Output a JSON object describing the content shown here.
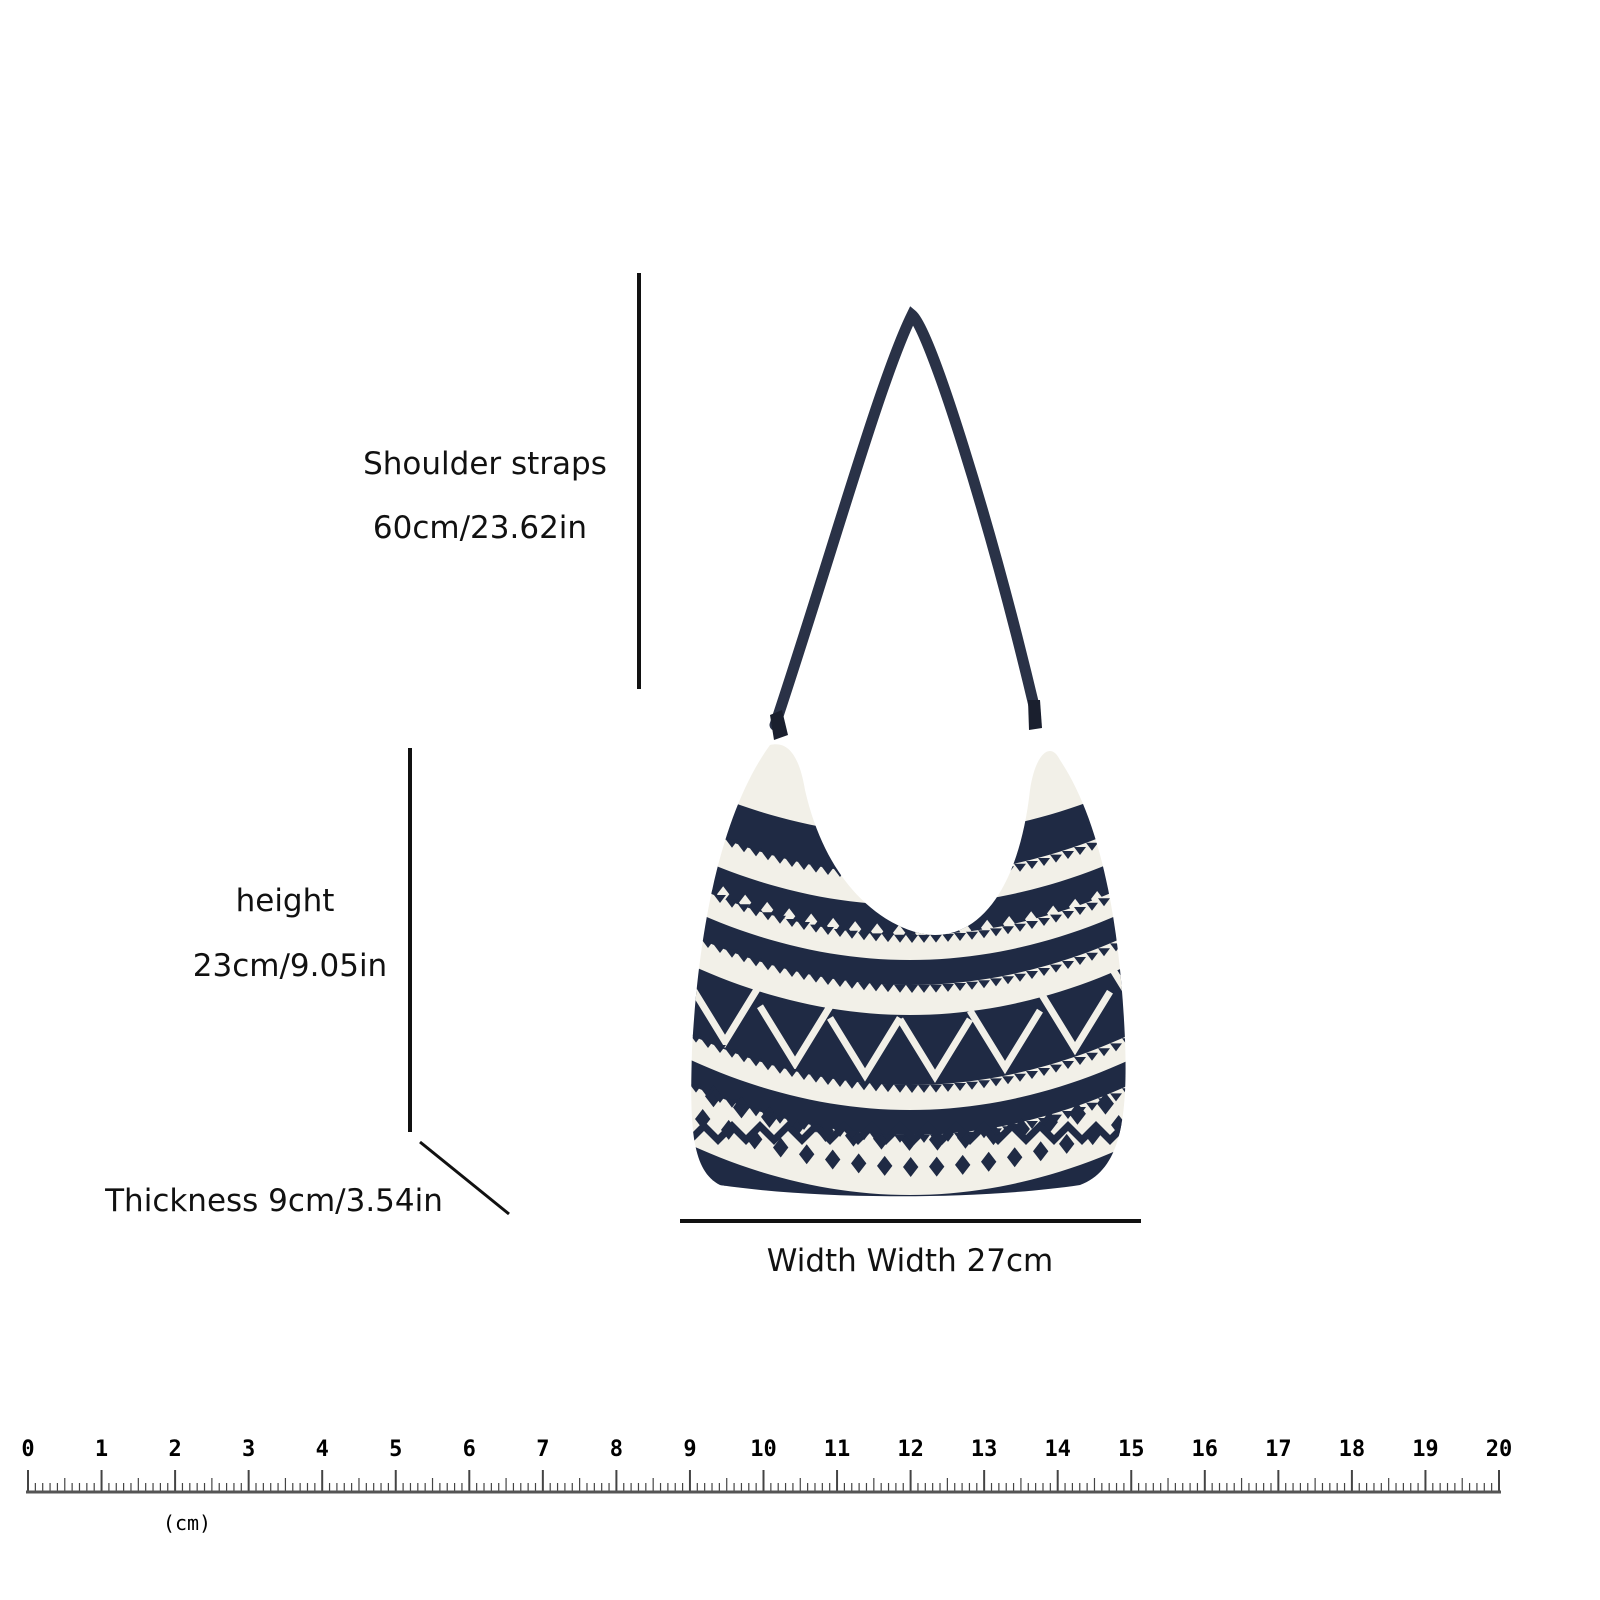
{
  "labels": {
    "strap_title": "Shoulder straps",
    "strap_value": "60cm/23.62in",
    "height_title": "height",
    "height_value": "23cm/9.05in",
    "thickness": "Thickness 9cm/3.54in",
    "width": "Width Width 27cm"
  },
  "ruler": {
    "ticks": [
      "0",
      "1",
      "2",
      "3",
      "4",
      "5",
      "6",
      "7",
      "8",
      "9",
      "10",
      "11",
      "12",
      "13",
      "14",
      "15",
      "16",
      "17",
      "18",
      "19",
      "20"
    ],
    "unit_label": "(cm)"
  },
  "colors": {
    "bag_navy": "#1f2a44",
    "bag_cream": "#f2f0e8",
    "line": "#111111"
  }
}
